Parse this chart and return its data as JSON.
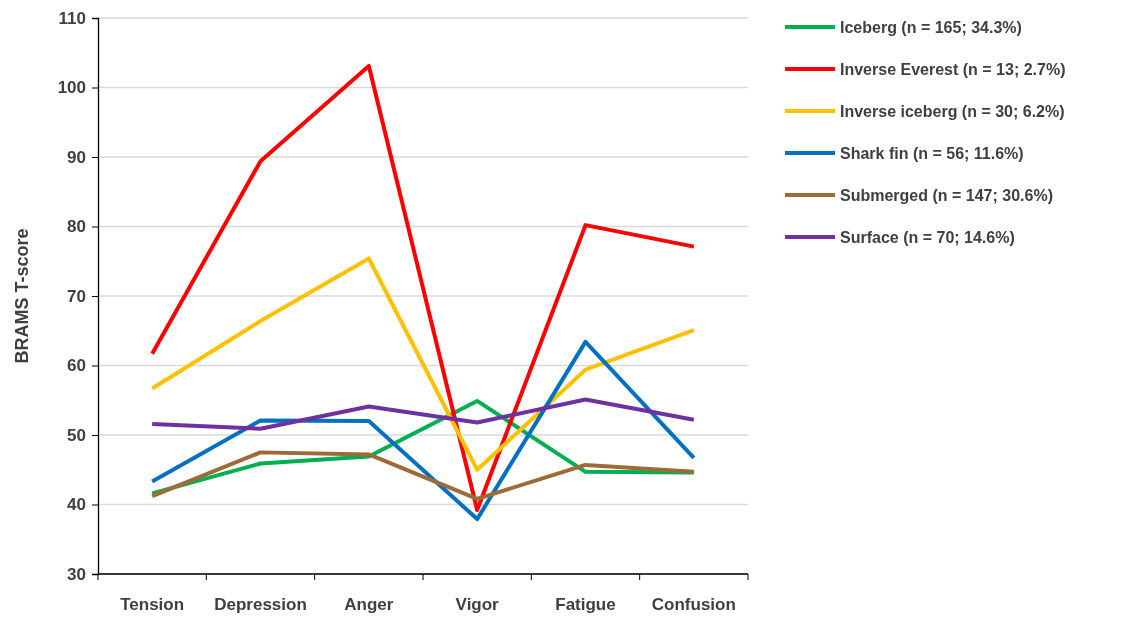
{
  "chart_data": {
    "type": "line",
    "ylabel": "BRAMS T-score",
    "categories": [
      "Tension",
      "Depression",
      "Anger",
      "Vigor",
      "Fatigue",
      "Confusion"
    ],
    "ylim": [
      30,
      110
    ],
    "yticks": [
      30,
      40,
      50,
      60,
      70,
      80,
      90,
      100,
      110
    ],
    "grid": "y",
    "legend": "top right",
    "marker": "none",
    "line_style": "solid",
    "series": [
      {
        "name": "Iceberg (n = 165; 34.3%)",
        "color": "#00b050",
        "values": [
          41.6,
          45.9,
          46.9,
          54.9,
          44.7,
          44.6
        ]
      },
      {
        "name": "Inverse Everest (n = 13; 2.7%)",
        "color": "#ff0000",
        "values": [
          61.7,
          89.4,
          103.1,
          39.2,
          80.2,
          77.1
        ]
      },
      {
        "name": "Inverse iceberg (n = 30; 6.2%)",
        "color": "#ffc000",
        "values": [
          56.7,
          66.4,
          75.4,
          45.0,
          59.4,
          65.1
        ]
      },
      {
        "name": "Shark fin (n = 56; 11.6%)",
        "color": "#0070c0",
        "values": [
          43.3,
          52.1,
          52.0,
          37.9,
          63.4,
          46.7
        ]
      },
      {
        "name": "Submerged (n = 147; 30.6%)",
        "color": "#9e6a38",
        "values": [
          41.2,
          47.5,
          47.2,
          40.8,
          45.7,
          44.7
        ]
      },
      {
        "name": "Surface (n = 70; 14.6%)",
        "color": "#7030a0",
        "values": [
          51.6,
          50.9,
          54.1,
          51.8,
          55.1,
          52.2
        ]
      }
    ]
  }
}
